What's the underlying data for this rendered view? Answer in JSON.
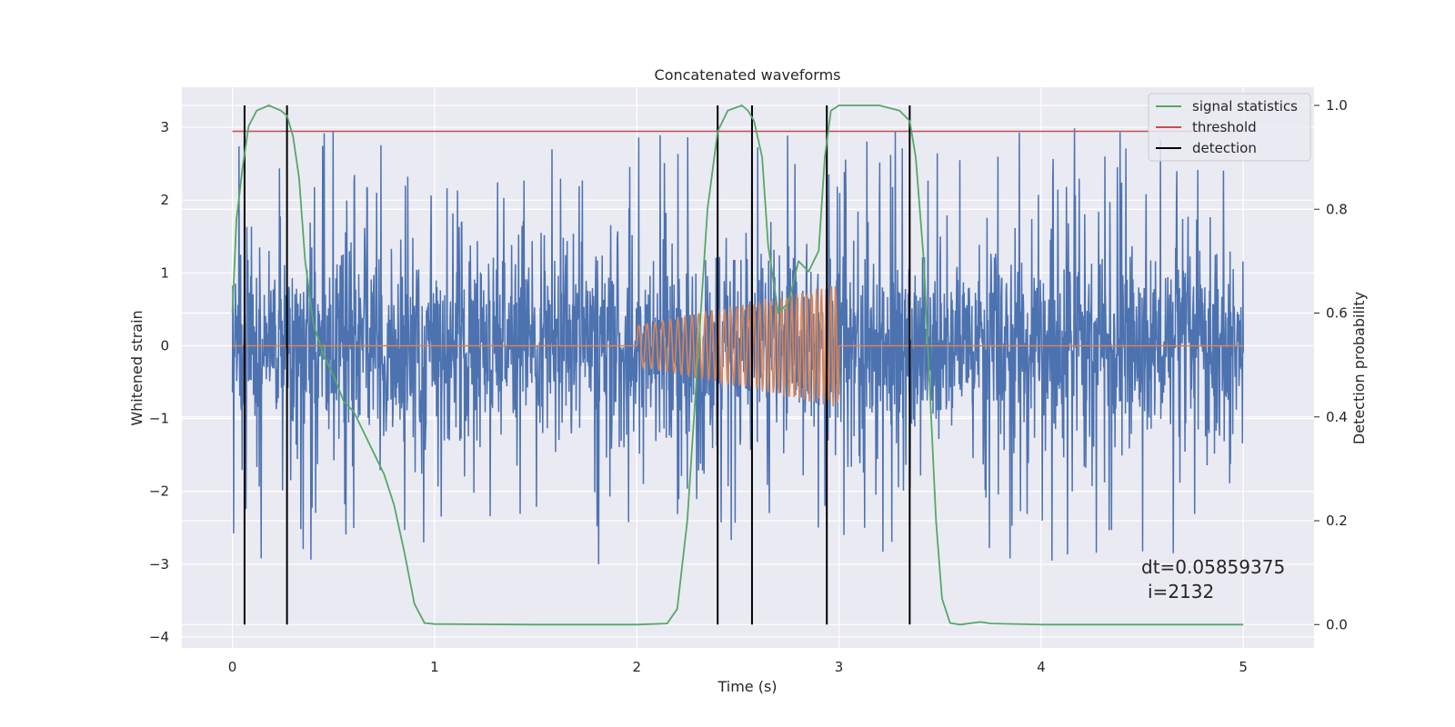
{
  "chart_data": {
    "type": "line",
    "title": "Concatenated waveforms",
    "xlabel": "Time (s)",
    "ylabel": "Whitened strain",
    "y2label": "Detection probability",
    "xlim": [
      -0.25,
      5.35
    ],
    "ylim": [
      -4.15,
      3.55
    ],
    "y2lim": [
      -0.045,
      1.035
    ],
    "x_ticks": [
      0,
      1,
      2,
      3,
      4,
      5
    ],
    "y_ticks": [
      -4,
      -3,
      -2,
      -1,
      0,
      1,
      2,
      3
    ],
    "y2_ticks": [
      0.0,
      0.2,
      0.4,
      0.6,
      0.8,
      1.0
    ],
    "y_tick_labels": [
      "−4",
      "−3",
      "−2",
      "−1",
      "0",
      "1",
      "2",
      "3"
    ],
    "y2_tick_labels": [
      "0.0",
      "0.2",
      "0.4",
      "0.6",
      "0.8",
      "1.0"
    ],
    "grid": true,
    "legend_position": "top-right",
    "series": [
      {
        "name": "",
        "description": "whitened noisy strain",
        "color": "#4c72b0",
        "x_range": [
          0,
          5
        ],
        "amplitude_typical": 1.0,
        "amplitude_peak": 3.25
      },
      {
        "name": "",
        "description": "injected chirp waveform",
        "color": "#dd8452",
        "x_range": [
          0,
          5
        ],
        "chirp_start": 2.0,
        "chirp_end": 3.0,
        "amplitude_start": 0.28,
        "amplitude_end": 0.85,
        "cycles_approx": 34
      },
      {
        "name": "signal statistics",
        "color": "#55a868",
        "axis": "right",
        "x": [
          0,
          0.02,
          0.05,
          0.08,
          0.12,
          0.18,
          0.24,
          0.27,
          0.3,
          0.33,
          0.36,
          0.4,
          0.45,
          0.5,
          0.55,
          0.6,
          0.65,
          0.7,
          0.75,
          0.8,
          0.85,
          0.9,
          0.95,
          1.0,
          1.5,
          2.0,
          2.15,
          2.2,
          2.25,
          2.3,
          2.35,
          2.4,
          2.45,
          2.52,
          2.55,
          2.58,
          2.62,
          2.65,
          2.7,
          2.75,
          2.8,
          2.85,
          2.9,
          2.93,
          2.96,
          3.0,
          3.1,
          3.2,
          3.3,
          3.35,
          3.38,
          3.42,
          3.45,
          3.48,
          3.51,
          3.55,
          3.6,
          3.7,
          3.75,
          4.0,
          4.5,
          5.0
        ],
        "values": [
          0.6,
          0.78,
          0.88,
          0.96,
          0.99,
          1.0,
          0.99,
          0.98,
          0.94,
          0.86,
          0.7,
          0.58,
          0.52,
          0.48,
          0.43,
          0.41,
          0.37,
          0.33,
          0.29,
          0.23,
          0.14,
          0.04,
          0.003,
          0.001,
          0.0,
          0.0,
          0.002,
          0.03,
          0.2,
          0.5,
          0.8,
          0.95,
          0.99,
          1.0,
          0.99,
          0.97,
          0.9,
          0.73,
          0.6,
          0.62,
          0.7,
          0.68,
          0.72,
          0.9,
          0.99,
          1.0,
          1.0,
          1.0,
          0.99,
          0.97,
          0.9,
          0.7,
          0.45,
          0.2,
          0.05,
          0.003,
          0.0,
          0.005,
          0.002,
          0.0,
          0.0,
          0.0
        ]
      },
      {
        "name": "threshold",
        "color": "#c44e52",
        "axis": "right",
        "value": 0.95,
        "x_range": [
          0,
          5
        ]
      },
      {
        "name": "detection",
        "color": "#000000",
        "axis": "right",
        "x": [
          0.06,
          0.27,
          2.4,
          2.57,
          2.94,
          3.35
        ],
        "range": [
          0,
          1
        ]
      }
    ],
    "annotations": [
      "dt=0.05859375",
      "i=2132"
    ]
  }
}
